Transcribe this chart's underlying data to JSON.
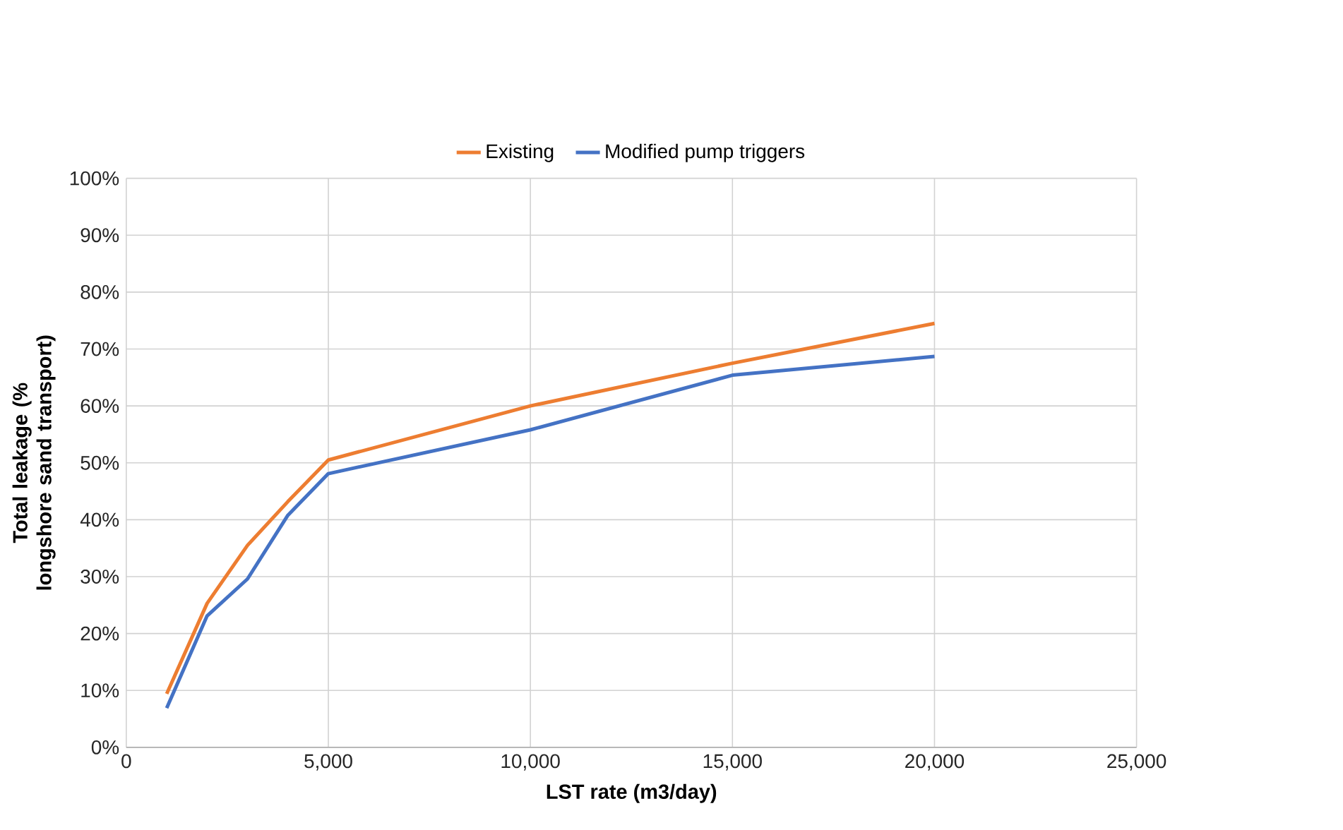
{
  "chart_data": {
    "type": "line",
    "xlabel": "LST rate (m3/day)",
    "ylabel": "Total leakage (% longshore sand transport)",
    "x": [
      1000,
      2000,
      3000,
      4000,
      5000,
      10000,
      15000,
      20000
    ],
    "series": [
      {
        "name": "Existing",
        "color": "#ed7d31",
        "values": [
          9.4,
          25.3,
          35.5,
          43.2,
          50.5,
          60,
          67.5,
          74.5
        ]
      },
      {
        "name": "Modified pump triggers",
        "color": "#4472c4",
        "values": [
          6.9,
          23.1,
          29.6,
          40.8,
          48.1,
          55.8,
          65.4,
          68.7
        ]
      }
    ],
    "xlim": [
      0,
      25000
    ],
    "xticks": [
      0,
      {
        "value": 5000,
        "label": "5,000"
      },
      {
        "value": 10000,
        "label": "10,000"
      },
      {
        "value": 15000,
        "label": "15,000"
      },
      {
        "value": 20000,
        "label": "20,000"
      },
      {
        "value": 25000,
        "label": "25,000"
      }
    ],
    "ylim": [
      0,
      100
    ],
    "yticks": [
      {
        "value": 0,
        "label": "0%"
      },
      {
        "value": 10,
        "label": "10%"
      },
      {
        "value": 20,
        "label": "20%"
      },
      {
        "value": 30,
        "label": "30%"
      },
      {
        "value": 40,
        "label": "40%"
      },
      {
        "value": 50,
        "label": "50%"
      },
      {
        "value": 60,
        "label": "60%"
      },
      {
        "value": 70,
        "label": "70%"
      },
      {
        "value": 80,
        "label": "80%"
      },
      {
        "value": 90,
        "label": "90%"
      },
      {
        "value": 100,
        "label": "100%"
      }
    ],
    "grid": true,
    "legend": "top",
    "line_style": "solid",
    "marker": "none"
  }
}
